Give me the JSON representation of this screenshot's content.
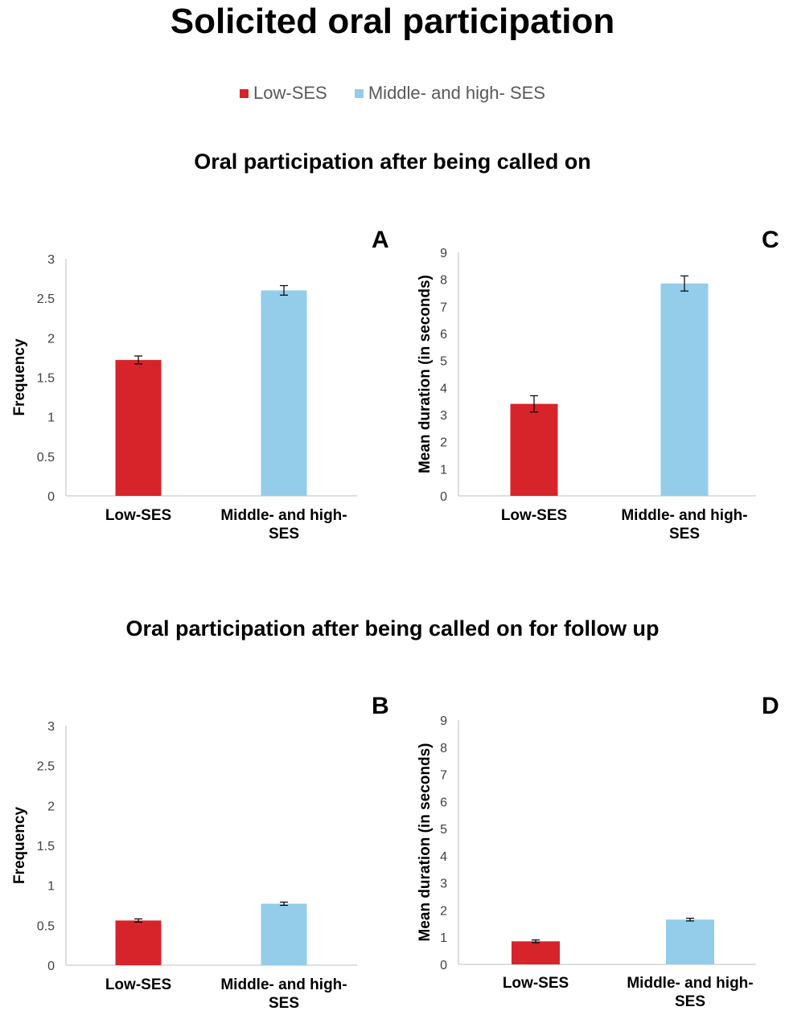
{
  "title": "Solicited oral participation",
  "legend": [
    {
      "label": "Low-SES",
      "color": "#d7242b"
    },
    {
      "label": "Middle- and high- SES",
      "color": "#93cdea"
    }
  ],
  "sections": [
    {
      "title": "Oral participation after being called on"
    },
    {
      "title": "Oral participation after being called on for follow up"
    }
  ],
  "chart_data": [
    {
      "panel": "A",
      "type": "bar",
      "categories": [
        "Low-SES",
        "Middle- and high- SES"
      ],
      "values": [
        1.72,
        2.6
      ],
      "errors": [
        0.05,
        0.06
      ],
      "colors": [
        "#d7242b",
        "#93cdea"
      ],
      "ylabel": "Frequency",
      "ylim": [
        0,
        3
      ],
      "yticks": [
        "0",
        "0.5",
        "1",
        "1.5",
        "2",
        "2.5",
        "3"
      ],
      "ytick_values": [
        0,
        0.5,
        1,
        1.5,
        2,
        2.5,
        3
      ],
      "xtick_lines": [
        [
          "Low-SES"
        ],
        [
          "Middle- and high-",
          "SES"
        ]
      ],
      "grid": false
    },
    {
      "panel": "C",
      "type": "bar",
      "categories": [
        "Low-SES",
        "Middle- and high- SES"
      ],
      "values": [
        3.4,
        7.85
      ],
      "errors": [
        0.3,
        0.28
      ],
      "colors": [
        "#d7242b",
        "#93cdea"
      ],
      "ylabel": "Mean duration (in seconds)",
      "ylim": [
        0,
        9
      ],
      "yticks": [
        "0",
        "1",
        "2",
        "3",
        "4",
        "5",
        "6",
        "7",
        "8",
        "9"
      ],
      "ytick_values": [
        0,
        1,
        2,
        3,
        4,
        5,
        6,
        7,
        8,
        9
      ],
      "xtick_lines": [
        [
          "Low-SES"
        ],
        [
          "Middle- and high-",
          "SES"
        ]
      ],
      "grid": false
    },
    {
      "panel": "B",
      "type": "bar",
      "categories": [
        "Low-SES",
        "Middle- and high- SES"
      ],
      "values": [
        0.56,
        0.77
      ],
      "errors": [
        0.02,
        0.02
      ],
      "colors": [
        "#d7242b",
        "#93cdea"
      ],
      "ylabel": "Frequency",
      "ylim": [
        0,
        3
      ],
      "yticks": [
        "0",
        "0.5",
        "1",
        "1.5",
        "2",
        "2.5",
        "3"
      ],
      "ytick_values": [
        0,
        0.5,
        1,
        1.5,
        2,
        2.5,
        3
      ],
      "xtick_lines": [
        [
          "Low-SES"
        ],
        [
          "Middle- and high-",
          "SES"
        ]
      ],
      "grid": false
    },
    {
      "panel": "D",
      "type": "bar",
      "categories": [
        "Low-SES",
        "Middle- and high- SES"
      ],
      "values": [
        0.85,
        1.65
      ],
      "errors": [
        0.05,
        0.05
      ],
      "colors": [
        "#d7242b",
        "#93cdea"
      ],
      "ylabel": "Mean duration (in seconds)",
      "ylim": [
        0,
        9
      ],
      "yticks": [
        "0",
        "1",
        "2",
        "3",
        "4",
        "5",
        "6",
        "7",
        "8",
        "9"
      ],
      "ytick_values": [
        0,
        1,
        2,
        3,
        4,
        5,
        6,
        7,
        8,
        9
      ],
      "xtick_lines": [
        [
          "Low-SES"
        ],
        [
          "Middle- and high-",
          "SES"
        ]
      ],
      "grid": false
    }
  ]
}
